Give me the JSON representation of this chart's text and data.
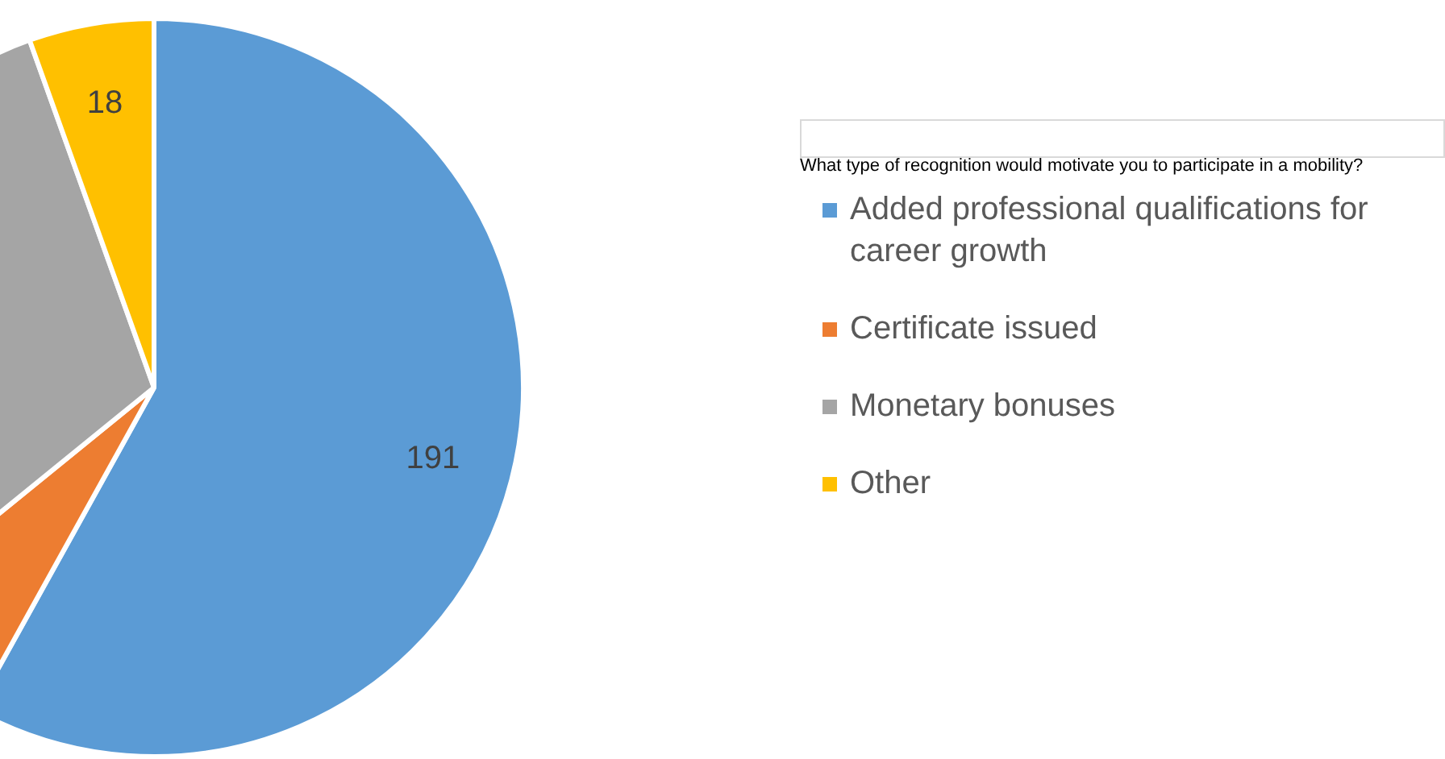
{
  "chart_data": {
    "type": "pie",
    "legend_title": "What type of recognition would motivate you to participate in a mobility?",
    "categories": [
      "Added professional qualifications for career growth",
      "Certificate issued",
      "Monetary bonuses",
      "Other"
    ],
    "values": [
      191,
      20,
      100,
      18
    ],
    "value_labels": [
      "191",
      null,
      null,
      "18"
    ],
    "colors": [
      "#5b9bd5",
      "#ed7d31",
      "#a5a5a5",
      "#ffc000"
    ],
    "legend": "right"
  }
}
